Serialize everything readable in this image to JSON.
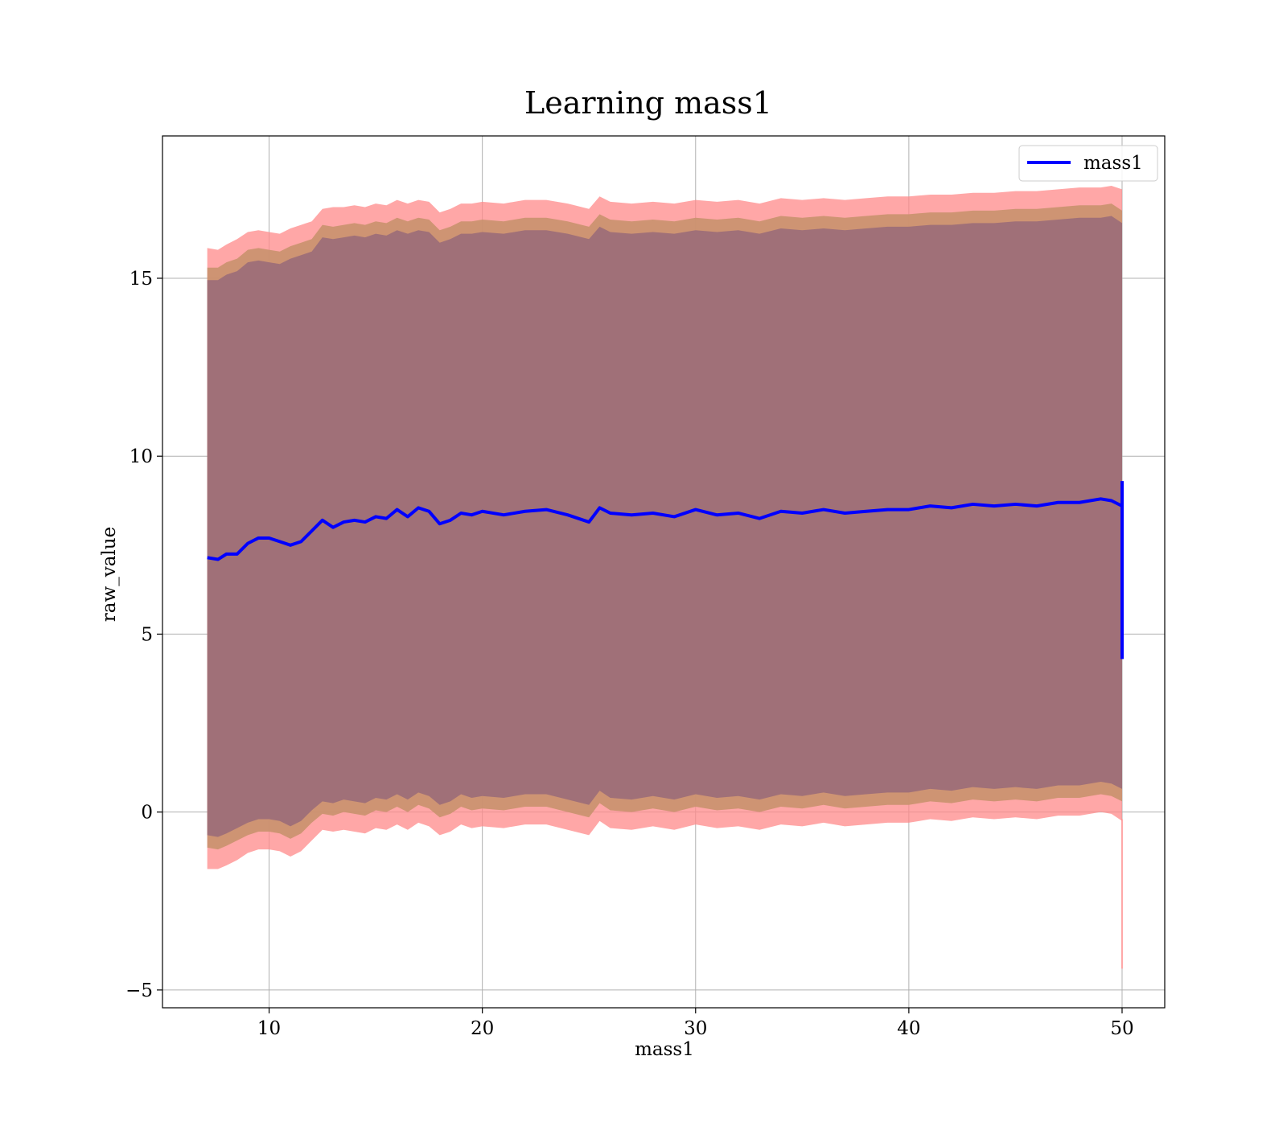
{
  "chart_data": {
    "type": "line",
    "title": "Learning mass1",
    "xlabel": "mass1",
    "ylabel": "raw_value",
    "xlim": [
      5,
      52
    ],
    "ylim": [
      -5.5,
      19
    ],
    "xticks": [
      10,
      20,
      30,
      40,
      50
    ],
    "yticks": [
      -5,
      0,
      5,
      10,
      15
    ],
    "xtick_labels": [
      "10",
      "20",
      "30",
      "40",
      "50"
    ],
    "ytick_labels": [
      "−5",
      "0",
      "5",
      "10",
      "15"
    ],
    "grid": true,
    "legend": {
      "placement": "top-right",
      "entries": [
        "mass1"
      ]
    },
    "colors": {
      "line": "#0000ff",
      "band_outer": "#ff8a8a",
      "band_mid": "#c9926e",
      "band_inner": "#a07078",
      "grid": "#b0b0b0"
    },
    "series": [
      {
        "name": "mass1",
        "x": [
          7.1,
          7.6,
          8.0,
          8.5,
          9.0,
          9.5,
          10.0,
          10.5,
          11.0,
          11.5,
          12.0,
          12.5,
          13.0,
          13.5,
          14.0,
          14.5,
          15.0,
          15.5,
          16.0,
          16.5,
          17.0,
          17.5,
          18.0,
          18.5,
          19.0,
          19.5,
          20.0,
          21.0,
          22.0,
          23.0,
          24.0,
          25.0,
          25.5,
          26.0,
          27.0,
          28.0,
          29.0,
          30.0,
          31.0,
          32.0,
          33.0,
          34.0,
          35.0,
          36.0,
          37.0,
          38.0,
          39.0,
          40.0,
          41.0,
          42.0,
          43.0,
          44.0,
          45.0,
          46.0,
          47.0,
          48.0,
          49.0,
          49.5,
          50.0
        ],
        "y": [
          7.15,
          7.1,
          7.25,
          7.25,
          7.55,
          7.7,
          7.7,
          7.6,
          7.5,
          7.6,
          7.9,
          8.2,
          8.0,
          8.15,
          8.2,
          8.15,
          8.3,
          8.25,
          8.5,
          8.3,
          8.55,
          8.45,
          8.1,
          8.2,
          8.4,
          8.35,
          8.45,
          8.35,
          8.45,
          8.5,
          8.35,
          8.15,
          8.55,
          8.4,
          8.35,
          8.4,
          8.3,
          8.5,
          8.35,
          8.4,
          8.25,
          8.45,
          8.4,
          8.5,
          8.4,
          8.45,
          8.5,
          8.5,
          8.6,
          8.55,
          8.65,
          8.6,
          8.65,
          8.6,
          8.7,
          8.7,
          8.8,
          8.75,
          8.6
        ],
        "upper_outer": [
          15.85,
          15.8,
          15.95,
          16.1,
          16.3,
          16.35,
          16.3,
          16.25,
          16.4,
          16.5,
          16.6,
          16.95,
          17.0,
          17.0,
          17.05,
          17.0,
          17.1,
          17.05,
          17.2,
          17.1,
          17.2,
          17.15,
          16.85,
          16.95,
          17.1,
          17.1,
          17.15,
          17.1,
          17.2,
          17.2,
          17.1,
          16.95,
          17.3,
          17.15,
          17.1,
          17.15,
          17.1,
          17.2,
          17.15,
          17.2,
          17.1,
          17.25,
          17.2,
          17.25,
          17.2,
          17.25,
          17.3,
          17.3,
          17.35,
          17.35,
          17.4,
          17.4,
          17.45,
          17.45,
          17.5,
          17.55,
          17.55,
          17.6,
          17.5
        ],
        "upper_inner": [
          15.3,
          15.3,
          15.45,
          15.55,
          15.8,
          15.85,
          15.8,
          15.75,
          15.9,
          16.0,
          16.1,
          16.5,
          16.45,
          16.5,
          16.55,
          16.5,
          16.6,
          16.55,
          16.7,
          16.6,
          16.7,
          16.65,
          16.35,
          16.45,
          16.6,
          16.6,
          16.65,
          16.6,
          16.7,
          16.7,
          16.6,
          16.45,
          16.8,
          16.65,
          16.6,
          16.65,
          16.6,
          16.7,
          16.65,
          16.7,
          16.6,
          16.75,
          16.7,
          16.75,
          16.7,
          16.75,
          16.8,
          16.8,
          16.85,
          16.85,
          16.9,
          16.9,
          16.95,
          16.95,
          17.0,
          17.05,
          17.05,
          17.1,
          16.9
        ],
        "lower_inner": [
          -1.0,
          -1.05,
          -0.95,
          -0.8,
          -0.65,
          -0.55,
          -0.55,
          -0.6,
          -0.75,
          -0.6,
          -0.3,
          -0.05,
          -0.1,
          0.0,
          -0.05,
          -0.1,
          0.05,
          0.0,
          0.15,
          0.0,
          0.2,
          0.1,
          -0.15,
          -0.05,
          0.15,
          0.05,
          0.1,
          0.05,
          0.15,
          0.15,
          0.0,
          -0.15,
          0.25,
          0.05,
          0.0,
          0.1,
          0.0,
          0.15,
          0.05,
          0.1,
          0.0,
          0.15,
          0.1,
          0.2,
          0.1,
          0.15,
          0.2,
          0.2,
          0.3,
          0.25,
          0.35,
          0.3,
          0.35,
          0.3,
          0.4,
          0.4,
          0.5,
          0.45,
          0.3
        ],
        "lower_outer": [
          -1.6,
          -1.6,
          -1.5,
          -1.35,
          -1.15,
          -1.05,
          -1.05,
          -1.1,
          -1.25,
          -1.1,
          -0.8,
          -0.5,
          -0.55,
          -0.5,
          -0.55,
          -0.6,
          -0.45,
          -0.5,
          -0.35,
          -0.5,
          -0.3,
          -0.4,
          -0.65,
          -0.55,
          -0.35,
          -0.45,
          -0.4,
          -0.45,
          -0.35,
          -0.35,
          -0.5,
          -0.65,
          -0.25,
          -0.45,
          -0.5,
          -0.4,
          -0.5,
          -0.35,
          -0.45,
          -0.4,
          -0.5,
          -0.35,
          -0.4,
          -0.3,
          -0.4,
          -0.35,
          -0.3,
          -0.3,
          -0.2,
          -0.25,
          -0.15,
          -0.2,
          -0.15,
          -0.2,
          -0.1,
          -0.1,
          0.0,
          -0.05,
          -0.25
        ],
        "end_vertical": {
          "x": 50.0,
          "y_min": 4.3,
          "y_max": 9.3
        },
        "end_outlier": {
          "x": 50.0,
          "y_min": -4.4,
          "y_max": -0.2
        }
      }
    ]
  }
}
